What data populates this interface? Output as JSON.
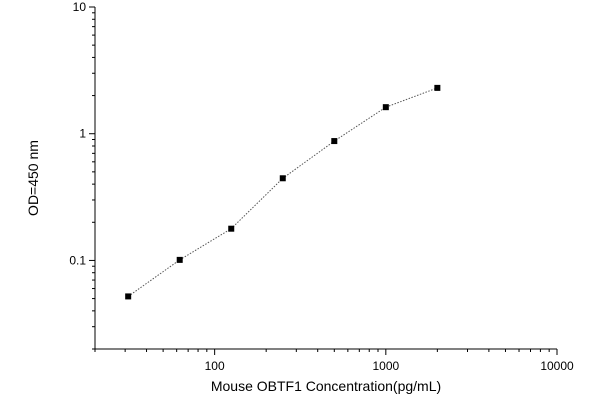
{
  "chart_data": {
    "type": "scatter",
    "title": "",
    "xlabel": "Mouse OBTF1 Concentration(pg/mL)",
    "ylabel": "OD=450 nm",
    "x_scale": "log",
    "y_scale": "log",
    "xlim": [
      20,
      10000
    ],
    "ylim": [
      0.02,
      10
    ],
    "x_ticks": [
      100,
      1000,
      10000
    ],
    "x_tick_labels": [
      "100",
      "1000",
      "10000"
    ],
    "y_ticks": [
      0.1,
      1,
      10
    ],
    "y_tick_labels": [
      "0.1",
      "1",
      "10"
    ],
    "grid": false,
    "legend": "none",
    "marker_color": "#000000",
    "line_color": "#555555",
    "line_style": "dotted",
    "series": [
      {
        "x": [
          31.25,
          62.5,
          125,
          250,
          500,
          1000,
          2000
        ],
        "y": [
          0.052,
          0.101,
          0.178,
          0.445,
          0.875,
          1.62,
          2.3
        ]
      }
    ]
  }
}
